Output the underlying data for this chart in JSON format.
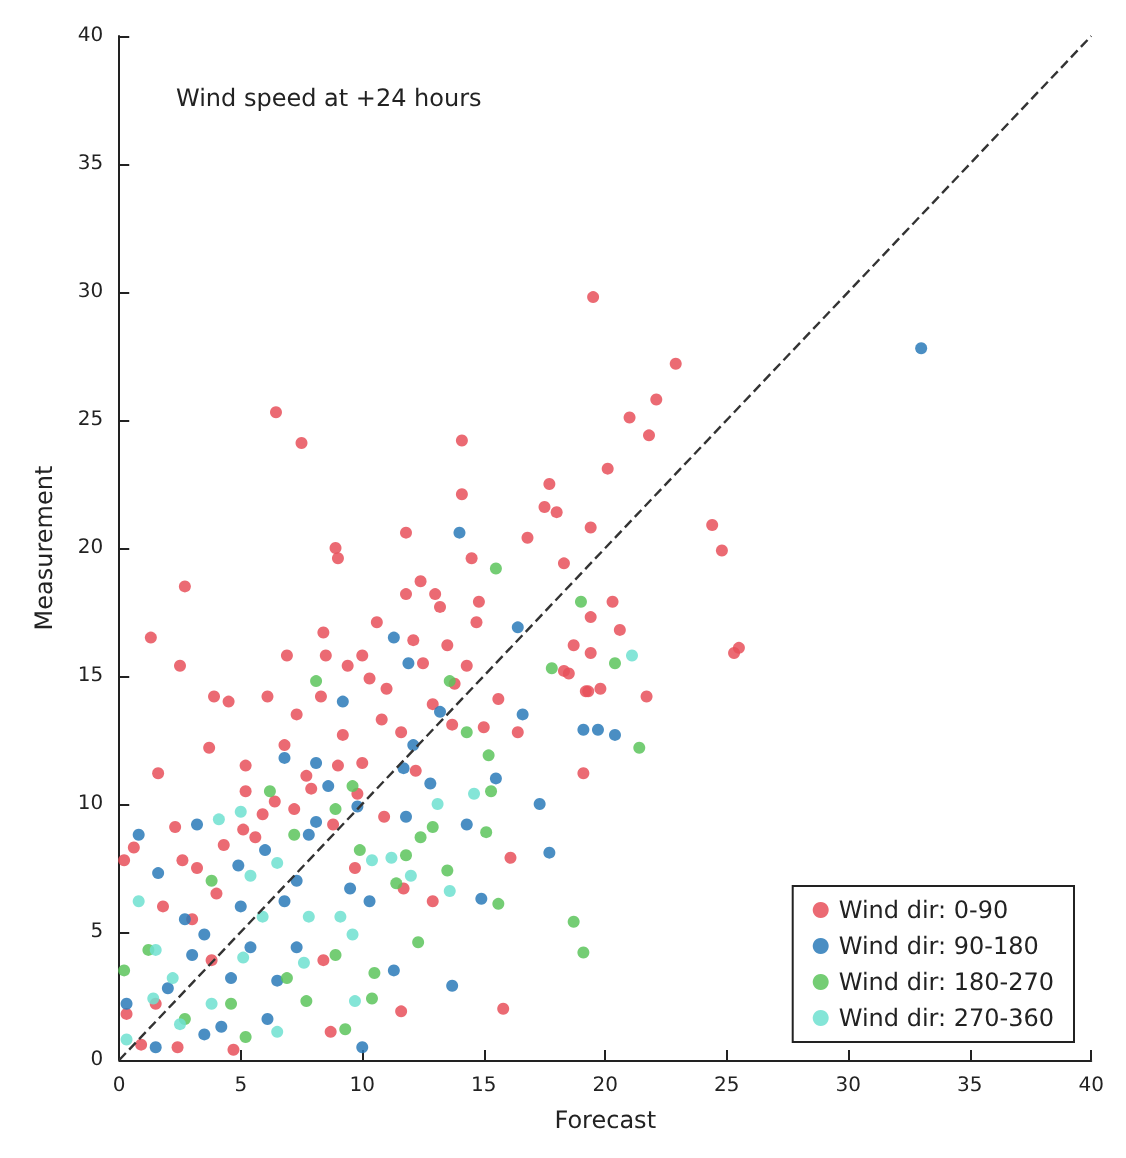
{
  "chart_data": {
    "type": "scatter",
    "title": "Wind speed at +24 hours",
    "xlabel": "Forecast",
    "ylabel": "Measurement",
    "xlim": [
      0,
      40
    ],
    "ylim": [
      0,
      40
    ],
    "xticks": [
      0,
      5,
      10,
      15,
      20,
      25,
      30,
      35,
      40
    ],
    "yticks": [
      0,
      5,
      10,
      15,
      20,
      25,
      30,
      35,
      40
    ],
    "grid": false,
    "legend": "bottom right",
    "marker": "circle",
    "series": [
      {
        "name": "Wind dir: 0-90",
        "color": "#e8505b",
        "x": [
          19.5,
          22.9,
          22.1,
          21,
          21.8,
          20.1,
          24.4,
          24.8,
          25.3,
          25.5,
          19.4,
          17.7,
          18.3,
          16.8,
          20.3,
          19.4,
          20.6,
          18.7,
          19.4,
          18.5,
          19.2,
          19.8,
          21.7,
          19.1,
          16.4,
          6.45,
          7.5,
          14.1,
          14.1,
          11.8,
          8.9,
          9.0,
          2.7,
          1.3,
          2.5,
          6.9,
          8.4,
          8.5,
          10.6,
          11.8,
          12.4,
          13,
          13.2,
          14.5,
          14.8,
          14.7,
          17.5,
          18,
          12.1,
          13.5,
          10,
          9.4,
          14.3,
          18.3,
          10.3,
          1.6,
          3.7,
          3.9,
          4.5,
          6.1,
          8.3,
          5.2,
          5.2,
          6.4,
          7.3,
          9.2,
          10,
          10.8,
          11.6,
          12.9,
          13.7,
          15.6,
          16.1,
          15.8,
          11.6,
          12.9,
          19.3,
          0.2,
          0.6,
          2.3,
          2.6,
          1.8,
          3.2,
          4.3,
          5.1,
          5.9,
          1.5,
          3.8,
          8.4,
          8.7,
          11.7,
          9.7,
          9.0,
          7.2,
          7.7,
          0.9,
          2.4,
          4.7,
          0.3,
          11,
          12.5,
          13.8,
          15,
          9.8,
          8.8,
          7.9,
          6.8,
          5.6,
          4,
          3,
          10.9,
          12.2
        ],
        "values": [
          29.8,
          27.2,
          25.8,
          25.1,
          24.4,
          23.1,
          20.9,
          19.9,
          15.9,
          16.1,
          20.8,
          22.5,
          19.4,
          20.4,
          17.9,
          17.3,
          16.8,
          16.2,
          15.9,
          15.1,
          14.4,
          14.5,
          14.2,
          11.2,
          12.8,
          25.3,
          24.1,
          24.2,
          22.1,
          20.6,
          20,
          19.6,
          18.5,
          16.5,
          15.4,
          15.8,
          16.7,
          15.8,
          17.1,
          18.2,
          18.7,
          18.2,
          17.7,
          19.6,
          17.9,
          17.1,
          21.6,
          21.4,
          16.4,
          16.2,
          15.8,
          15.4,
          15.4,
          15.2,
          14.9,
          11.2,
          12.2,
          14.2,
          14,
          14.2,
          14.2,
          11.5,
          10.5,
          10.1,
          13.5,
          12.7,
          11.6,
          13.3,
          12.8,
          13.9,
          13.1,
          14.1,
          7.9,
          2,
          1.9,
          6.2,
          14.4,
          7.8,
          8.3,
          9.1,
          7.8,
          6,
          7.5,
          8.4,
          9,
          9.6,
          2.2,
          3.9,
          3.9,
          1.1,
          6.7,
          7.5,
          11.5,
          9.8,
          11.1,
          0.6,
          0.5,
          0.4,
          1.8,
          14.5,
          15.5,
          14.7,
          13,
          10.4,
          9.2,
          10.6,
          12.3,
          8.7,
          6.5,
          5.5,
          9.5,
          11.3
        ]
      },
      {
        "name": "Wind dir: 90-180",
        "color": "#2a7ab8",
        "x": [
          33,
          20.4,
          17.3,
          16.6,
          19.1,
          14,
          11.3,
          16.4,
          11.9,
          0.8,
          1.6,
          3.2,
          2.7,
          3.0,
          3.5,
          4.9,
          5,
          6.8,
          8.1,
          8.6,
          7.8,
          6.8,
          7.3,
          6.5,
          6.1,
          4.2,
          1.5,
          0.3,
          10,
          11.8,
          13.7,
          14.3,
          15.5,
          17.7,
          14.9,
          11.3,
          10.3,
          9.5,
          11.7,
          12.1,
          13.2,
          9.2,
          19.7,
          8.1,
          7.3,
          5.4,
          4.6,
          3.5,
          9.8,
          12.8,
          6,
          2
        ],
        "values": [
          27.8,
          12.7,
          10,
          13.5,
          12.9,
          20.6,
          16.5,
          16.9,
          15.5,
          8.8,
          7.3,
          9.2,
          5.5,
          4.1,
          4.9,
          7.6,
          6,
          11.8,
          11.6,
          10.7,
          8.8,
          6.2,
          4.4,
          3.1,
          1.6,
          1.3,
          0.5,
          2.2,
          0.5,
          9.5,
          2.9,
          9.2,
          11,
          8.1,
          6.3,
          3.5,
          6.2,
          6.7,
          11.4,
          12.3,
          13.6,
          14,
          12.9,
          9.3,
          7,
          4.4,
          3.2,
          1.0,
          9.9,
          10.8,
          8.2,
          2.8
        ]
      },
      {
        "name": "Wind dir: 180-270",
        "color": "#5cc45c",
        "x": [
          15.5,
          19,
          8.1,
          17.8,
          20.4,
          21.4,
          0.2,
          1.2,
          2.7,
          4.6,
          5.2,
          7.7,
          8.9,
          7.2,
          8.9,
          10.4,
          10.5,
          12.3,
          11.4,
          12.4,
          12.9,
          11.8,
          15.1,
          15.6,
          13.5,
          15.3,
          15.2,
          14.3,
          13.6,
          18.7,
          19.1,
          9.3,
          6.2,
          9.6,
          3.8,
          6.9,
          9.9
        ],
        "values": [
          19.2,
          17.9,
          14.8,
          15.3,
          15.5,
          12.2,
          3.5,
          4.3,
          1.6,
          2.2,
          0.9,
          2.3,
          4.1,
          8.8,
          9.8,
          2.4,
          3.4,
          4.6,
          6.9,
          8.7,
          9.1,
          8,
          8.9,
          6.1,
          7.4,
          10.5,
          11.9,
          12.8,
          14.8,
          5.4,
          4.2,
          1.2,
          10.5,
          10.7,
          7,
          3.2,
          8.2
        ]
      },
      {
        "name": "Wind dir: 270-360",
        "color": "#6fe0d0",
        "x": [
          21.1,
          0.3,
          1.4,
          2.2,
          2.5,
          3.8,
          5.1,
          5.9,
          5.4,
          6.5,
          7.8,
          9.1,
          9.6,
          9.7,
          10.4,
          11.2,
          13.1,
          13.6,
          14.6,
          5,
          0.8,
          1.5,
          6.5,
          7.6,
          4.1,
          12
        ],
        "values": [
          15.8,
          0.8,
          2.4,
          3.2,
          1.4,
          2.2,
          4,
          5.6,
          7.2,
          7.7,
          5.6,
          5.6,
          4.9,
          2.3,
          7.8,
          7.9,
          10,
          6.6,
          10.4,
          9.7,
          6.2,
          4.3,
          1.1,
          3.8,
          9.4,
          7.2
        ]
      },
      {
        "type": "line",
        "color": "#333333",
        "line_style": "dashed",
        "marker": "none",
        "x": [
          0,
          40
        ],
        "values": [
          0,
          40
        ]
      }
    ]
  }
}
